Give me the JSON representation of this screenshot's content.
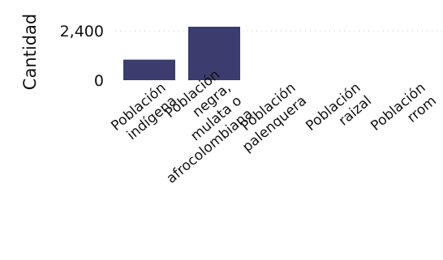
{
  "chart_data": {
    "type": "bar",
    "categories": [
      "Población indígena",
      "Población negra, mulata o afrocolombiana",
      "Población palenquera",
      "Población raizal",
      "Población rrom"
    ],
    "values": [
      1000,
      2600,
      0,
      0,
      0
    ],
    "ylabel": "Cantidad",
    "yticks": [
      0,
      2400
    ],
    "ytick_labels": [
      "0",
      "2,400"
    ],
    "ylim": [
      0,
      2600
    ],
    "bar_color": "#3a3d6e",
    "grid": true
  }
}
